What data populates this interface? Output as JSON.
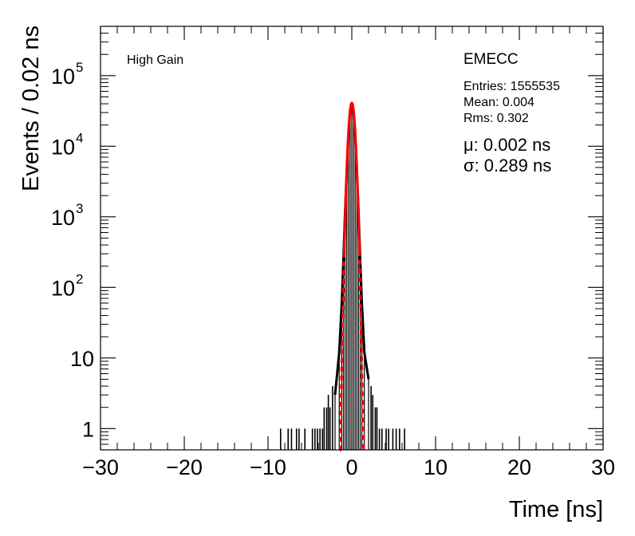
{
  "chart_data": {
    "type": "histogram",
    "title": "",
    "xlabel": "Time [ns]",
    "ylabel": "Events / 0.02 ns",
    "xlim": [
      -30,
      30
    ],
    "ylim": [
      0.5,
      500000
    ],
    "log_y": true,
    "bin_width_ns": 0.02,
    "x_ticks": [
      -30,
      -20,
      -10,
      0,
      10,
      20,
      30
    ],
    "x_tick_labels": [
      "−30",
      "−20",
      "−10",
      "0",
      "10",
      "20",
      "30"
    ],
    "y_ticks": [
      {
        "value": 1,
        "base": "1",
        "exp": ""
      },
      {
        "value": 10,
        "base": "10",
        "exp": ""
      },
      {
        "value": 100,
        "base": "10",
        "exp": "2"
      },
      {
        "value": 1000,
        "base": "10",
        "exp": "3"
      },
      {
        "value": 10000,
        "base": "10",
        "exp": "4"
      },
      {
        "value": 100000,
        "base": "10",
        "exp": "5"
      }
    ],
    "gain_label": "High Gain",
    "region_label": "EMECC",
    "stats": {
      "entries": "Entries: 1555535",
      "mean": "Mean: 0.004",
      "rms": "Rms: 0.302"
    },
    "fit": {
      "mu_label": "μ: 0.002 ns",
      "sigma_label": "σ: 0.289 ns",
      "mu": 0.002,
      "sigma": 0.289,
      "peak": 41000,
      "color": "#ff0000"
    },
    "histogram": {
      "color": "#000000",
      "core_points": [
        {
          "x": -2.0,
          "y": 3
        },
        {
          "x": -1.5,
          "y": 12
        },
        {
          "x": -1.2,
          "y": 60
        },
        {
          "x": -1.0,
          "y": 250
        },
        {
          "x": -0.8,
          "y": 1200
        },
        {
          "x": -0.6,
          "y": 4500
        },
        {
          "x": -0.4,
          "y": 14000
        },
        {
          "x": -0.2,
          "y": 32000
        },
        {
          "x": 0.0,
          "y": 41000
        },
        {
          "x": 0.2,
          "y": 32000
        },
        {
          "x": 0.4,
          "y": 14000
        },
        {
          "x": 0.6,
          "y": 4500
        },
        {
          "x": 0.8,
          "y": 1200
        },
        {
          "x": 1.0,
          "y": 250
        },
        {
          "x": 1.2,
          "y": 60
        },
        {
          "x": 1.5,
          "y": 12
        },
        {
          "x": 2.0,
          "y": 5
        }
      ],
      "tail_spikes": [
        {
          "x": -8.5,
          "y": 1
        },
        {
          "x": -7.6,
          "y": 1
        },
        {
          "x": -7.2,
          "y": 1
        },
        {
          "x": -6.6,
          "y": 1
        },
        {
          "x": -6.3,
          "y": 1
        },
        {
          "x": -5.6,
          "y": 1
        },
        {
          "x": -4.7,
          "y": 1
        },
        {
          "x": -4.4,
          "y": 1
        },
        {
          "x": -4.1,
          "y": 1
        },
        {
          "x": -3.8,
          "y": 1
        },
        {
          "x": -3.5,
          "y": 1
        },
        {
          "x": -3.3,
          "y": 2
        },
        {
          "x": -3.0,
          "y": 2
        },
        {
          "x": -2.8,
          "y": 3
        },
        {
          "x": -2.6,
          "y": 2
        },
        {
          "x": -2.3,
          "y": 4
        },
        {
          "x": 2.3,
          "y": 4
        },
        {
          "x": 2.5,
          "y": 3
        },
        {
          "x": 2.8,
          "y": 2
        },
        {
          "x": 3.0,
          "y": 2
        },
        {
          "x": 3.3,
          "y": 1
        },
        {
          "x": 3.6,
          "y": 1
        },
        {
          "x": 4.1,
          "y": 1
        },
        {
          "x": 4.4,
          "y": 1
        },
        {
          "x": 4.9,
          "y": 1
        },
        {
          "x": 5.3,
          "y": 1
        },
        {
          "x": 5.7,
          "y": 1
        },
        {
          "x": 6.3,
          "y": 1
        }
      ]
    }
  }
}
